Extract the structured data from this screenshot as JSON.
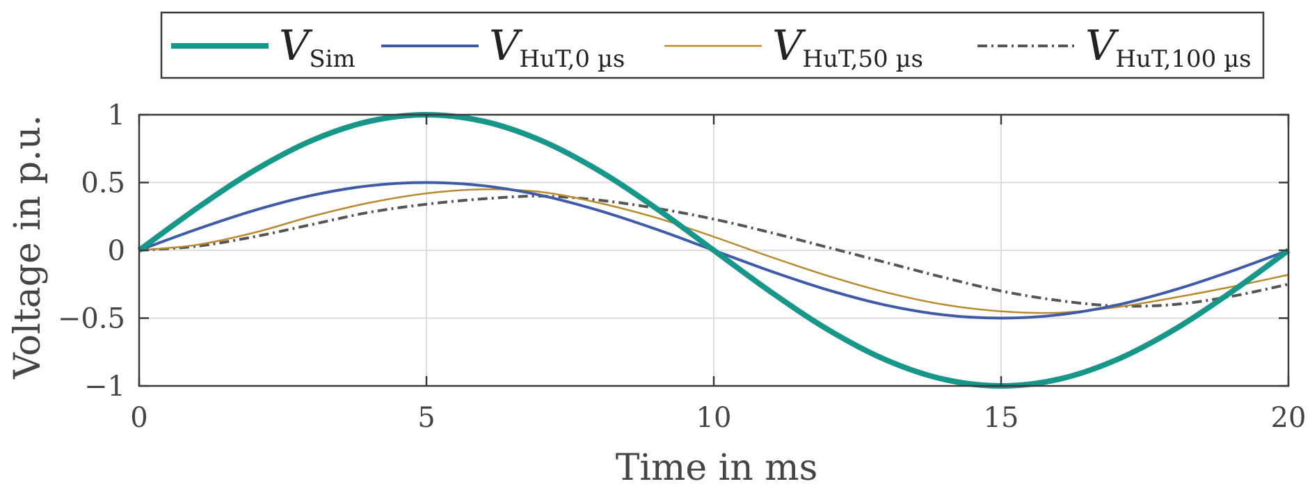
{
  "chart_data": {
    "type": "line",
    "title": "",
    "xlabel": "Time in ms",
    "ylabel": "Voltage in p.u.",
    "xlim": [
      0,
      20
    ],
    "ylim": [
      -1,
      1
    ],
    "xticks": [
      0,
      5,
      10,
      15,
      20
    ],
    "xtick_labels": [
      "0",
      "5",
      "10",
      "15",
      "20"
    ],
    "yticks": [
      1,
      0.5,
      0,
      -0.5,
      -1
    ],
    "ytick_labels": [
      "1",
      "0.5",
      "0",
      "−0.5",
      "−1"
    ],
    "grid": true,
    "legend_position": "top-center",
    "x": [
      0,
      1,
      2,
      3,
      4,
      5,
      6,
      7,
      8,
      9,
      10,
      11,
      12,
      13,
      14,
      15,
      16,
      17,
      18,
      19,
      20
    ],
    "series": [
      {
        "name": "V_Sim",
        "legend_main": "V",
        "legend_sub": "Sim",
        "color": "#17968a",
        "style": "solid",
        "weight": "thick",
        "values": [
          0,
          0.309,
          0.588,
          0.809,
          0.951,
          1.0,
          0.951,
          0.809,
          0.588,
          0.309,
          0,
          -0.309,
          -0.588,
          -0.809,
          -0.951,
          -1.0,
          -0.951,
          -0.809,
          -0.588,
          -0.309,
          0
        ]
      },
      {
        "name": "V_HuT,0 µs",
        "legend_main": "V",
        "legend_sub": "HuT,0 µs",
        "color": "#3f5ba8",
        "style": "solid",
        "weight": "medium",
        "values": [
          0,
          0.155,
          0.294,
          0.405,
          0.476,
          0.5,
          0.476,
          0.405,
          0.294,
          0.155,
          0,
          -0.155,
          -0.294,
          -0.405,
          -0.476,
          -0.5,
          -0.476,
          -0.405,
          -0.294,
          -0.155,
          0
        ]
      },
      {
        "name": "V_HuT,50 µs",
        "legend_main": "V",
        "legend_sub": "HuT,50 µs",
        "color": "#b98a2d",
        "style": "solid",
        "weight": "thin",
        "values": [
          0,
          0.04,
          0.13,
          0.25,
          0.35,
          0.42,
          0.45,
          0.43,
          0.35,
          0.24,
          0.1,
          -0.05,
          -0.19,
          -0.31,
          -0.4,
          -0.45,
          -0.46,
          -0.42,
          -0.35,
          -0.27,
          -0.18
        ]
      },
      {
        "name": "V_HuT,100 µs",
        "legend_main": "V",
        "legend_sub": "HuT,100 µs",
        "color": "#555555",
        "style": "dashdot",
        "weight": "medium",
        "values": [
          0,
          0.03,
          0.1,
          0.19,
          0.28,
          0.34,
          0.38,
          0.4,
          0.37,
          0.31,
          0.23,
          0.13,
          0.02,
          -0.09,
          -0.2,
          -0.3,
          -0.37,
          -0.41,
          -0.4,
          -0.34,
          -0.25
        ]
      }
    ]
  }
}
